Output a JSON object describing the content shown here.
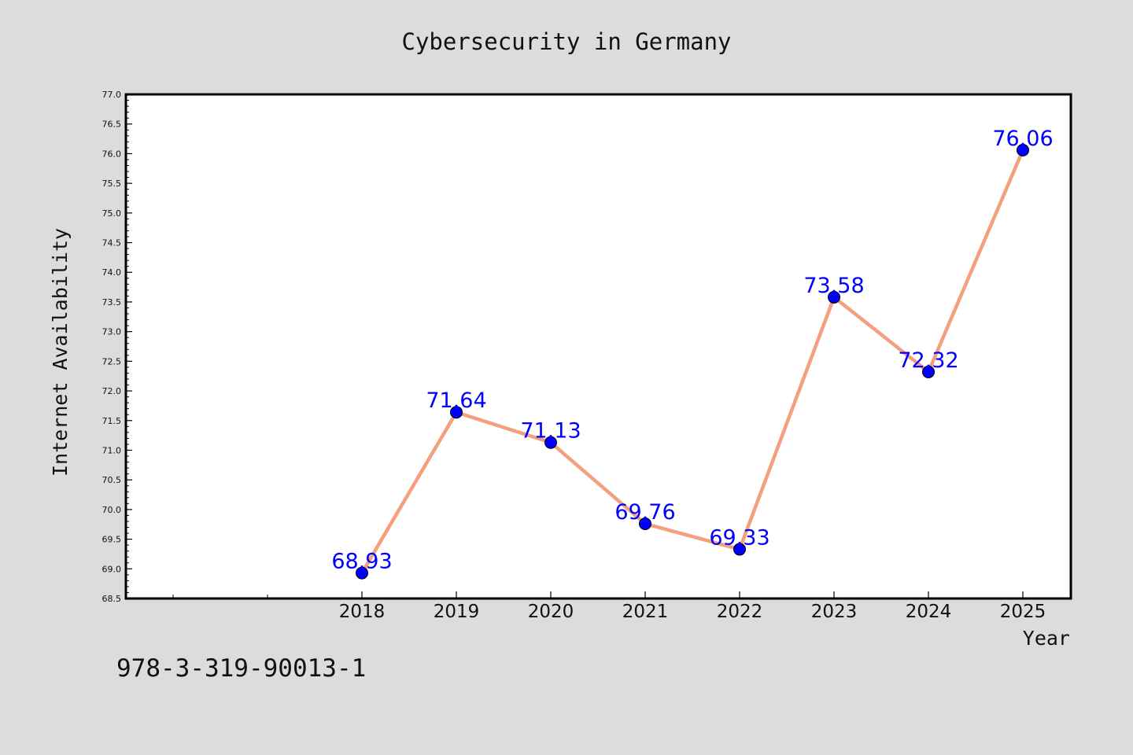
{
  "chart_data": {
    "type": "line",
    "title": "Cybersecurity in Germany",
    "xlabel": "Year",
    "ylabel": "Internet Availability",
    "categories": [
      "2018",
      "2019",
      "2020",
      "2021",
      "2022",
      "2023",
      "2024",
      "2025"
    ],
    "series": [
      {
        "values": [
          68.93,
          71.64,
          71.13,
          69.76,
          69.33,
          73.58,
          72.32,
          76.06
        ]
      }
    ],
    "data_labels": [
      "68.93",
      "71.64",
      "71.13",
      "69.76",
      "69.33",
      "73.58",
      "72.32",
      "76.06"
    ],
    "ylim": [
      68.5,
      77.0
    ],
    "yticks": [
      "68.5",
      "69.0",
      "69.5",
      "70.0",
      "70.5",
      "71.0",
      "71.5",
      "72.0",
      "72.5",
      "73.0",
      "73.5",
      "74.0",
      "74.5",
      "75.0",
      "75.5",
      "76.0",
      "76.5",
      "77.0"
    ],
    "grid": false,
    "line_color": "#f4a07e",
    "marker_color": "#0000ff",
    "label_color": "#0000ff",
    "plot_background": "#ffffff",
    "figure_background": "#dcdcdc"
  },
  "footer": {
    "isbn": "978-3-319-90013-1"
  }
}
